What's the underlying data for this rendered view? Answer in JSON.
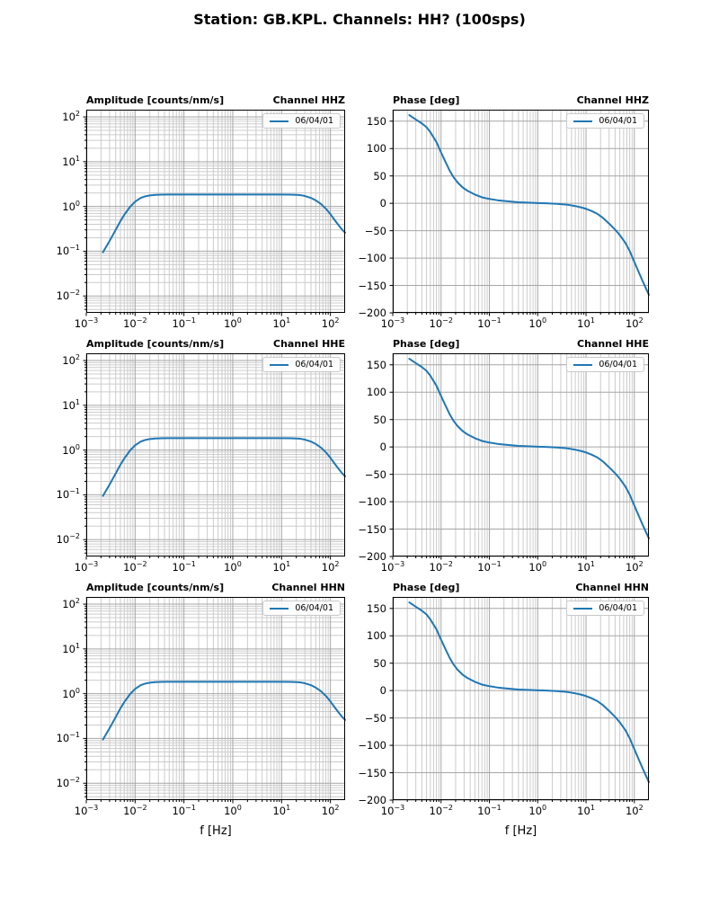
{
  "page_title": "Station: GB.KPL. Channels: HH? (100sps)",
  "figure": {
    "xlabel": "f [Hz]",
    "legend_label": "06/04/01",
    "line_color": "#1f77b4",
    "axis_color": "#000000",
    "grid_major_color": "#a6a6a6",
    "grid_minor_color": "#cccccc",
    "background": "#ffffff"
  },
  "chart_data": [
    {
      "panel": "HHZ-amplitude",
      "type": "line",
      "title_left": "Amplitude [counts/nm/s]",
      "title_right": "Channel HHZ",
      "legend_label": "06/04/01",
      "xscale": "log",
      "yscale": "log",
      "xlim": [
        0.001,
        200
      ],
      "ylim": [
        0.0042,
        145
      ],
      "xticks_exp": [
        -3,
        -2,
        -1,
        0,
        1,
        2
      ],
      "yticks_exp": [
        2,
        1,
        0,
        -1,
        -2
      ],
      "x": [
        0.0022,
        0.003,
        0.004,
        0.005,
        0.006,
        0.008,
        0.01,
        0.013,
        0.016,
        0.02,
        0.026,
        0.035,
        0.05,
        0.08,
        0.15,
        0.4,
        1,
        3,
        8,
        15,
        20,
        25,
        30,
        40,
        50,
        65,
        80,
        100,
        125,
        150,
        175,
        200
      ],
      "y": [
        0.095,
        0.17,
        0.3,
        0.47,
        0.65,
        1.0,
        1.28,
        1.55,
        1.68,
        1.76,
        1.81,
        1.84,
        1.85,
        1.85,
        1.85,
        1.85,
        1.85,
        1.85,
        1.85,
        1.84,
        1.82,
        1.78,
        1.71,
        1.55,
        1.37,
        1.12,
        0.9,
        0.67,
        0.48,
        0.37,
        0.3,
        0.26
      ]
    },
    {
      "panel": "HHZ-phase",
      "type": "line",
      "title_left": "Phase [deg]",
      "title_right": "Channel HHZ",
      "legend_label": "06/04/01",
      "xscale": "log",
      "yscale": "linear",
      "xlim": [
        0.001,
        200
      ],
      "ylim": [
        -200,
        171
      ],
      "xticks_exp": [
        -3,
        -2,
        -1,
        0,
        1,
        2
      ],
      "yticks": [
        150,
        100,
        50,
        0,
        -50,
        -100,
        -150,
        -200
      ],
      "x": [
        0.0022,
        0.003,
        0.004,
        0.005,
        0.006,
        0.008,
        0.01,
        0.012,
        0.015,
        0.018,
        0.022,
        0.028,
        0.035,
        0.05,
        0.07,
        0.1,
        0.15,
        0.25,
        0.4,
        0.7,
        1,
        1.5,
        2.5,
        4,
        6,
        8,
        10,
        13,
        17,
        22,
        30,
        40,
        50,
        65,
        80,
        100,
        125,
        150,
        175,
        200
      ],
      "y": [
        161,
        153,
        146,
        139,
        130,
        112,
        93,
        78,
        60,
        48,
        38,
        29,
        23,
        16,
        11,
        8,
        5.5,
        3.5,
        2,
        1,
        0.5,
        0,
        -1,
        -2.5,
        -5,
        -7.5,
        -10,
        -14,
        -19,
        -26,
        -37,
        -48,
        -58,
        -72,
        -87,
        -107,
        -127,
        -143,
        -156,
        -167
      ]
    },
    {
      "panel": "HHE-amplitude",
      "type": "line",
      "title_left": "Amplitude [counts/nm/s]",
      "title_right": "Channel HHE",
      "legend_label": "06/04/01",
      "xscale": "log",
      "yscale": "log",
      "xlim": [
        0.001,
        200
      ],
      "ylim": [
        0.0042,
        145
      ],
      "xticks_exp": [
        -3,
        -2,
        -1,
        0,
        1,
        2
      ],
      "yticks_exp": [
        2,
        1,
        0,
        -1,
        -2
      ],
      "x": [
        0.0022,
        0.003,
        0.004,
        0.005,
        0.006,
        0.008,
        0.01,
        0.013,
        0.016,
        0.02,
        0.026,
        0.035,
        0.05,
        0.08,
        0.15,
        0.4,
        1,
        3,
        8,
        15,
        20,
        25,
        30,
        40,
        50,
        65,
        80,
        100,
        125,
        150,
        175,
        200
      ],
      "y": [
        0.095,
        0.17,
        0.3,
        0.47,
        0.65,
        1.0,
        1.28,
        1.55,
        1.68,
        1.76,
        1.81,
        1.84,
        1.85,
        1.85,
        1.85,
        1.85,
        1.85,
        1.85,
        1.85,
        1.84,
        1.82,
        1.78,
        1.71,
        1.55,
        1.37,
        1.12,
        0.9,
        0.67,
        0.48,
        0.37,
        0.3,
        0.26
      ]
    },
    {
      "panel": "HHE-phase",
      "type": "line",
      "title_left": "Phase [deg]",
      "title_right": "Channel HHE",
      "legend_label": "06/04/01",
      "xscale": "log",
      "yscale": "linear",
      "xlim": [
        0.001,
        200
      ],
      "ylim": [
        -200,
        171
      ],
      "xticks_exp": [
        -3,
        -2,
        -1,
        0,
        1,
        2
      ],
      "yticks": [
        150,
        100,
        50,
        0,
        -50,
        -100,
        -150,
        -200
      ],
      "x": [
        0.0022,
        0.003,
        0.004,
        0.005,
        0.006,
        0.008,
        0.01,
        0.012,
        0.015,
        0.018,
        0.022,
        0.028,
        0.035,
        0.05,
        0.07,
        0.1,
        0.15,
        0.25,
        0.4,
        0.7,
        1,
        1.5,
        2.5,
        4,
        6,
        8,
        10,
        13,
        17,
        22,
        30,
        40,
        50,
        65,
        80,
        100,
        125,
        150,
        175,
        200
      ],
      "y": [
        161,
        153,
        146,
        139,
        130,
        112,
        93,
        78,
        60,
        48,
        38,
        29,
        23,
        16,
        11,
        8,
        5.5,
        3.5,
        2,
        1,
        0.5,
        0,
        -1,
        -2.5,
        -5,
        -7.5,
        -10,
        -14,
        -19,
        -26,
        -37,
        -48,
        -58,
        -72,
        -87,
        -107,
        -127,
        -143,
        -156,
        -167
      ]
    },
    {
      "panel": "HHN-amplitude",
      "type": "line",
      "title_left": "Amplitude [counts/nm/s]",
      "title_right": "Channel HHN",
      "legend_label": "06/04/01",
      "xscale": "log",
      "yscale": "log",
      "xlim": [
        0.001,
        200
      ],
      "ylim": [
        0.0042,
        145
      ],
      "xticks_exp": [
        -3,
        -2,
        -1,
        0,
        1,
        2
      ],
      "yticks_exp": [
        2,
        1,
        0,
        -1,
        -2
      ],
      "x": [
        0.0022,
        0.003,
        0.004,
        0.005,
        0.006,
        0.008,
        0.01,
        0.013,
        0.016,
        0.02,
        0.026,
        0.035,
        0.05,
        0.08,
        0.15,
        0.4,
        1,
        3,
        8,
        15,
        20,
        25,
        30,
        40,
        50,
        65,
        80,
        100,
        125,
        150,
        175,
        200
      ],
      "y": [
        0.095,
        0.17,
        0.3,
        0.47,
        0.65,
        1.0,
        1.28,
        1.55,
        1.68,
        1.76,
        1.81,
        1.84,
        1.85,
        1.85,
        1.85,
        1.85,
        1.85,
        1.85,
        1.85,
        1.84,
        1.82,
        1.78,
        1.71,
        1.55,
        1.37,
        1.12,
        0.9,
        0.67,
        0.48,
        0.37,
        0.3,
        0.26
      ]
    },
    {
      "panel": "HHN-phase",
      "type": "line",
      "title_left": "Phase [deg]",
      "title_right": "Channel HHN",
      "legend_label": "06/04/01",
      "xscale": "log",
      "yscale": "linear",
      "xlim": [
        0.001,
        200
      ],
      "ylim": [
        -200,
        171
      ],
      "xticks_exp": [
        -3,
        -2,
        -1,
        0,
        1,
        2
      ],
      "yticks": [
        150,
        100,
        50,
        0,
        -50,
        -100,
        -150,
        -200
      ],
      "x": [
        0.0022,
        0.003,
        0.004,
        0.005,
        0.006,
        0.008,
        0.01,
        0.012,
        0.015,
        0.018,
        0.022,
        0.028,
        0.035,
        0.05,
        0.07,
        0.1,
        0.15,
        0.25,
        0.4,
        0.7,
        1,
        1.5,
        2.5,
        4,
        6,
        8,
        10,
        13,
        17,
        22,
        30,
        40,
        50,
        65,
        80,
        100,
        125,
        150,
        175,
        200
      ],
      "y": [
        161,
        153,
        146,
        139,
        130,
        112,
        93,
        78,
        60,
        48,
        38,
        29,
        23,
        16,
        11,
        8,
        5.5,
        3.5,
        2,
        1,
        0.5,
        0,
        -1,
        -2.5,
        -5,
        -7.5,
        -10,
        -14,
        -19,
        -26,
        -37,
        -48,
        -58,
        -72,
        -87,
        -107,
        -127,
        -143,
        -156,
        -167
      ]
    }
  ]
}
